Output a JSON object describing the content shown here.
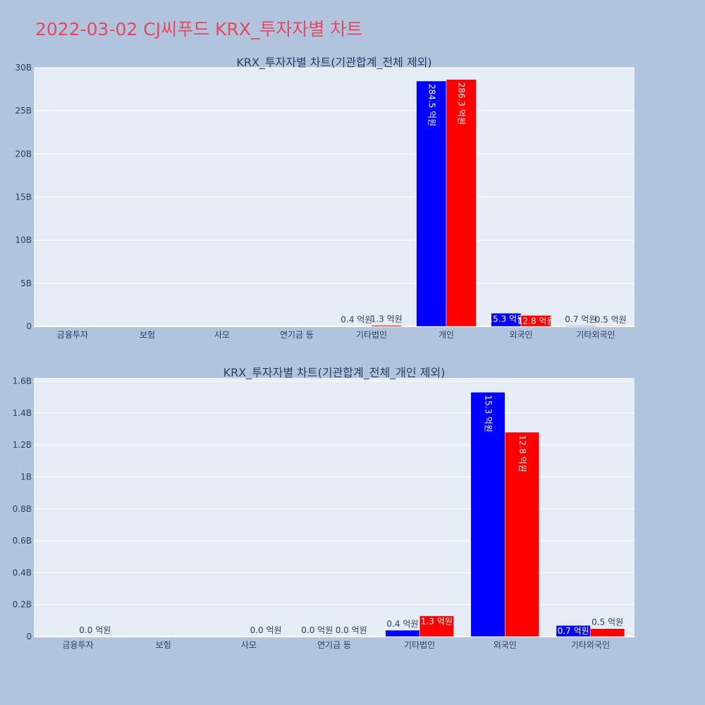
{
  "page": {
    "title": "2022-03-02 CJ씨푸드 KRX_투자자별 차트"
  },
  "colors": {
    "buy": "#0000ff",
    "sell": "#ff0000",
    "text": "#2a3f5f"
  },
  "chart_data": [
    {
      "type": "bar",
      "title": "KRX_투자자별 차트(기관합계_전체 제외)",
      "categories": [
        "금융투자",
        "보험",
        "사모",
        "연기금 등",
        "기타법인",
        "개인",
        "외국인",
        "기타외국인"
      ],
      "series": [
        {
          "values": [
            0,
            0,
            0,
            0,
            40000000,
            28450000000,
            1530000000,
            70000000
          ],
          "labels": [
            "",
            "",
            "",
            "",
            "0.4 억원",
            "284.5 억원",
            "15.3 억원",
            "0.7 억원"
          ]
        },
        {
          "values": [
            0,
            0,
            0,
            0,
            130000000,
            28630000000,
            1280000000,
            50000000
          ],
          "labels": [
            "",
            "",
            "",
            "",
            "1.3 억원",
            "286.3 억원",
            "12.8 억원",
            "0.5 억원"
          ]
        }
      ],
      "ylim": [
        0,
        30000000000
      ],
      "yticks": [
        0,
        5000000000,
        10000000000,
        15000000000,
        20000000000,
        25000000000,
        30000000000
      ],
      "ytick_labels": [
        "0",
        "5B",
        "10B",
        "15B",
        "20B",
        "25B",
        "30B"
      ],
      "grid": true,
      "legend": "none"
    },
    {
      "type": "bar",
      "title": "KRX_투자자별 차트(기관합계_전체_개인 제외)",
      "categories": [
        "금융투자",
        "보험",
        "사모",
        "연기금 등",
        "기타법인",
        "외국인",
        "기타외국인"
      ],
      "series": [
        {
          "values": [
            0,
            0,
            0,
            0,
            40000000,
            1530000000,
            70000000
          ],
          "labels": [
            "",
            "",
            "",
            "0.0 억원",
            "0.4 억원",
            "15.3 억원",
            "0.7 억원"
          ]
        },
        {
          "values": [
            0,
            0,
            0,
            0,
            130000000,
            1280000000,
            50000000
          ],
          "labels": [
            "0.0 억원",
            "",
            "0.0 억원",
            "0.0 억원",
            "1.3 억원",
            "12.8 억원",
            "0.5 억원"
          ]
        }
      ],
      "ylim": [
        0,
        1620000000
      ],
      "yticks": [
        0,
        200000000,
        400000000,
        600000000,
        800000000,
        1000000000,
        1200000000,
        1400000000,
        1600000000
      ],
      "ytick_labels": [
        "0",
        "0.2B",
        "0.4B",
        "0.6B",
        "0.8B",
        "1B",
        "1.2B",
        "1.4B",
        "1.6B"
      ],
      "grid": true,
      "legend": "none"
    }
  ]
}
